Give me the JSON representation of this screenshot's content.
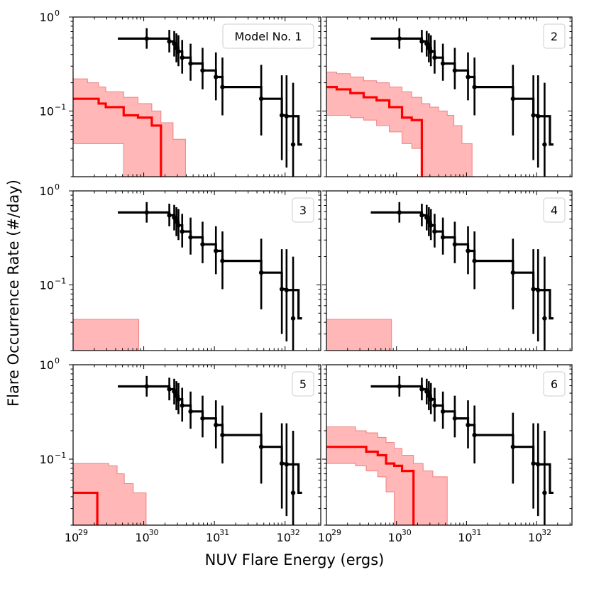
{
  "figure": {
    "xlabel": "NUV Flare Energy (ergs)",
    "ylabel": "Flare Occurrence Rate (#/day)",
    "colors": {
      "observed": "#000000",
      "model": "#ff0000",
      "band_fill": "#ffb3b3",
      "band_edge": "#f08080"
    }
  },
  "chart_data": [
    {
      "type": "line",
      "panel": 1,
      "legend_label": "Model No. 1",
      "xscale": "log",
      "yscale": "log",
      "xlim": [
        1e+29,
        3.2e+32
      ],
      "ylim": [
        0.02,
        1.0
      ],
      "observed": {
        "step_x": [
          4.3e+29,
          1.1e+30,
          2.3e+30,
          2.7e+30,
          2.9e+30,
          3.1e+30,
          3.5e+30,
          4.6e+30,
          6.8e+30,
          1.05e+31,
          1.3e+31,
          4.6e+31,
          9e+31,
          1.05e+32,
          1.55e+32
        ],
        "step_y": [
          0.59,
          0.59,
          0.55,
          0.52,
          0.47,
          0.43,
          0.37,
          0.32,
          0.27,
          0.23,
          0.18,
          0.135,
          0.09,
          0.088,
          0.044
        ],
        "points_x": [
          1.1e+30,
          2.3e+30,
          2.7e+30,
          2.9e+30,
          3.1e+30,
          3.5e+30,
          4.6e+30,
          6.8e+30,
          1.05e+31,
          1.3e+31,
          4.6e+31,
          9e+31,
          1.05e+32,
          1.3e+32
        ],
        "points_y": [
          0.59,
          0.55,
          0.52,
          0.47,
          0.43,
          0.37,
          0.32,
          0.27,
          0.23,
          0.18,
          0.135,
          0.09,
          0.088,
          0.044
        ],
        "err_lo": [
          0.46,
          0.42,
          0.38,
          0.33,
          0.3,
          0.25,
          0.21,
          0.17,
          0.13,
          0.09,
          0.055,
          0.03,
          0.025,
          0.02
        ],
        "err_hi": [
          0.76,
          0.73,
          0.71,
          0.67,
          0.64,
          0.57,
          0.52,
          0.47,
          0.42,
          0.37,
          0.31,
          0.24,
          0.24,
          0.2
        ]
      },
      "model_line": {
        "x": [
          1e+29,
          1.6e+29,
          2.3e+29,
          2.9e+29,
          5.2e+29,
          8.3e+29,
          1.3e+30,
          1.75e+30,
          1.75e+30
        ],
        "y": [
          0.135,
          0.135,
          0.12,
          0.11,
          0.09,
          0.085,
          0.07,
          0.045,
          0.02
        ]
      },
      "model_band": {
        "x": [
          1e+29,
          1.6e+29,
          2.3e+29,
          2.9e+29,
          5.2e+29,
          8.3e+29,
          1.3e+30,
          1.75e+30,
          2.6e+30,
          3.7e+30
        ],
        "upper": [
          0.22,
          0.2,
          0.18,
          0.16,
          0.14,
          0.12,
          0.1,
          0.075,
          0.05,
          0.05
        ],
        "lower": [
          0.045,
          0.045,
          0.045,
          0.045,
          0.02,
          0.02,
          0.02,
          0.02,
          0.02,
          0.02
        ],
        "x_end": 3.9e+30
      }
    },
    {
      "type": "line",
      "panel": 2,
      "legend_label": "2",
      "xscale": "log",
      "yscale": "log",
      "xlim": [
        1e+29,
        3.2e+32
      ],
      "ylim": [
        0.02,
        1.0
      ],
      "observed": {
        "step_x": [
          4.3e+29,
          1.1e+30,
          2.3e+30,
          2.7e+30,
          2.9e+30,
          3.1e+30,
          3.5e+30,
          4.6e+30,
          6.8e+30,
          1.05e+31,
          1.3e+31,
          4.6e+31,
          9e+31,
          1.05e+32,
          1.55e+32
        ],
        "step_y": [
          0.59,
          0.59,
          0.55,
          0.52,
          0.47,
          0.43,
          0.37,
          0.32,
          0.27,
          0.23,
          0.18,
          0.135,
          0.09,
          0.088,
          0.044
        ],
        "points_x": [
          1.1e+30,
          2.3e+30,
          2.7e+30,
          2.9e+30,
          3.1e+30,
          3.5e+30,
          4.6e+30,
          6.8e+30,
          1.05e+31,
          1.3e+31,
          4.6e+31,
          9e+31,
          1.05e+32,
          1.3e+32
        ],
        "points_y": [
          0.59,
          0.55,
          0.52,
          0.47,
          0.43,
          0.37,
          0.32,
          0.27,
          0.23,
          0.18,
          0.135,
          0.09,
          0.088,
          0.044
        ],
        "err_lo": [
          0.46,
          0.42,
          0.38,
          0.33,
          0.3,
          0.25,
          0.21,
          0.17,
          0.13,
          0.09,
          0.055,
          0.03,
          0.025,
          0.02
        ],
        "err_hi": [
          0.76,
          0.73,
          0.71,
          0.67,
          0.64,
          0.57,
          0.52,
          0.47,
          0.42,
          0.37,
          0.31,
          0.24,
          0.24,
          0.2
        ]
      },
      "model_line": {
        "x": [
          1e+29,
          1.4e+29,
          2.2e+29,
          3.4e+29,
          5.2e+29,
          7.9e+29,
          1.2e+30,
          1.65e+30,
          2.3e+30,
          2.3e+30
        ],
        "y": [
          0.18,
          0.17,
          0.155,
          0.14,
          0.13,
          0.11,
          0.085,
          0.08,
          0.07,
          0.02
        ]
      },
      "model_band": {
        "x": [
          1e+29,
          1.4e+29,
          2.2e+29,
          3.4e+29,
          5.2e+29,
          7.9e+29,
          1.2e+30,
          1.65e+30,
          2.3e+30,
          3e+30,
          4e+30,
          5.3e+30,
          6.6e+30,
          8.6e+30
        ],
        "upper": [
          0.26,
          0.25,
          0.23,
          0.21,
          0.2,
          0.18,
          0.16,
          0.14,
          0.12,
          0.11,
          0.1,
          0.09,
          0.07,
          0.045
        ],
        "lower": [
          0.09,
          0.09,
          0.085,
          0.08,
          0.07,
          0.06,
          0.045,
          0.04,
          0.02,
          0.02,
          0.02,
          0.02,
          0.02,
          0.02
        ],
        "x_end": 1.2e+31
      }
    },
    {
      "type": "line",
      "panel": 3,
      "legend_label": "3",
      "xscale": "log",
      "yscale": "log",
      "xlim": [
        1e+29,
        3.2e+32
      ],
      "ylim": [
        0.02,
        1.0
      ],
      "observed": {
        "step_x": [
          4.3e+29,
          1.1e+30,
          2.3e+30,
          2.7e+30,
          2.9e+30,
          3.1e+30,
          3.5e+30,
          4.6e+30,
          6.8e+30,
          1.05e+31,
          1.3e+31,
          4.6e+31,
          9e+31,
          1.05e+32,
          1.55e+32
        ],
        "step_y": [
          0.59,
          0.59,
          0.55,
          0.52,
          0.47,
          0.43,
          0.37,
          0.32,
          0.27,
          0.23,
          0.18,
          0.135,
          0.09,
          0.088,
          0.044
        ],
        "points_x": [
          1.1e+30,
          2.3e+30,
          2.7e+30,
          2.9e+30,
          3.1e+30,
          3.5e+30,
          4.6e+30,
          6.8e+30,
          1.05e+31,
          1.3e+31,
          4.6e+31,
          9e+31,
          1.05e+32,
          1.3e+32
        ],
        "points_y": [
          0.59,
          0.55,
          0.52,
          0.47,
          0.43,
          0.37,
          0.32,
          0.27,
          0.23,
          0.18,
          0.135,
          0.09,
          0.088,
          0.044
        ],
        "err_lo": [
          0.46,
          0.42,
          0.38,
          0.33,
          0.3,
          0.25,
          0.21,
          0.17,
          0.13,
          0.09,
          0.055,
          0.03,
          0.025,
          0.02
        ],
        "err_hi": [
          0.76,
          0.73,
          0.71,
          0.67,
          0.64,
          0.57,
          0.52,
          0.47,
          0.42,
          0.37,
          0.31,
          0.24,
          0.24,
          0.2
        ]
      },
      "model_line": {
        "x": [],
        "y": []
      },
      "model_band": {
        "x": [
          1e+29
        ],
        "upper": [
          0.043
        ],
        "lower": [
          0.02
        ],
        "x_end": 8.5e+29
      }
    },
    {
      "type": "line",
      "panel": 4,
      "legend_label": "4",
      "xscale": "log",
      "yscale": "log",
      "xlim": [
        1e+29,
        3.2e+32
      ],
      "ylim": [
        0.02,
        1.0
      ],
      "observed": {
        "step_x": [
          4.3e+29,
          1.1e+30,
          2.3e+30,
          2.7e+30,
          2.9e+30,
          3.1e+30,
          3.5e+30,
          4.6e+30,
          6.8e+30,
          1.05e+31,
          1.3e+31,
          4.6e+31,
          9e+31,
          1.05e+32,
          1.55e+32
        ],
        "step_y": [
          0.59,
          0.59,
          0.55,
          0.52,
          0.47,
          0.43,
          0.37,
          0.32,
          0.27,
          0.23,
          0.18,
          0.135,
          0.09,
          0.088,
          0.044
        ],
        "points_x": [
          1.1e+30,
          2.3e+30,
          2.7e+30,
          2.9e+30,
          3.1e+30,
          3.5e+30,
          4.6e+30,
          6.8e+30,
          1.05e+31,
          1.3e+31,
          4.6e+31,
          9e+31,
          1.05e+32,
          1.3e+32
        ],
        "points_y": [
          0.59,
          0.55,
          0.52,
          0.47,
          0.43,
          0.37,
          0.32,
          0.27,
          0.23,
          0.18,
          0.135,
          0.09,
          0.088,
          0.044
        ],
        "err_lo": [
          0.46,
          0.42,
          0.38,
          0.33,
          0.3,
          0.25,
          0.21,
          0.17,
          0.13,
          0.09,
          0.055,
          0.03,
          0.025,
          0.02
        ],
        "err_hi": [
          0.76,
          0.73,
          0.71,
          0.67,
          0.64,
          0.57,
          0.52,
          0.47,
          0.42,
          0.37,
          0.31,
          0.24,
          0.24,
          0.2
        ]
      },
      "model_line": {
        "x": [],
        "y": []
      },
      "model_band": {
        "x": [
          1e+29
        ],
        "upper": [
          0.043
        ],
        "lower": [
          0.02
        ],
        "x_end": 8.5e+29
      }
    },
    {
      "type": "line",
      "panel": 5,
      "legend_label": "5",
      "xscale": "log",
      "yscale": "log",
      "xlim": [
        1e+29,
        3.2e+32
      ],
      "ylim": [
        0.02,
        1.0
      ],
      "observed": {
        "step_x": [
          4.3e+29,
          1.1e+30,
          2.3e+30,
          2.7e+30,
          2.9e+30,
          3.1e+30,
          3.5e+30,
          4.6e+30,
          6.8e+30,
          1.05e+31,
          1.3e+31,
          4.6e+31,
          9e+31,
          1.05e+32,
          1.55e+32
        ],
        "step_y": [
          0.59,
          0.59,
          0.55,
          0.52,
          0.47,
          0.43,
          0.37,
          0.32,
          0.27,
          0.23,
          0.18,
          0.135,
          0.09,
          0.088,
          0.044
        ],
        "points_x": [
          1.1e+30,
          2.3e+30,
          2.7e+30,
          2.9e+30,
          3.1e+30,
          3.5e+30,
          4.6e+30,
          6.8e+30,
          1.05e+31,
          1.3e+31,
          4.6e+31,
          9e+31,
          1.05e+32,
          1.3e+32
        ],
        "points_y": [
          0.59,
          0.55,
          0.52,
          0.47,
          0.43,
          0.37,
          0.32,
          0.27,
          0.23,
          0.18,
          0.135,
          0.09,
          0.088,
          0.044
        ],
        "err_lo": [
          0.46,
          0.42,
          0.38,
          0.33,
          0.3,
          0.25,
          0.21,
          0.17,
          0.13,
          0.09,
          0.055,
          0.03,
          0.025,
          0.02
        ],
        "err_hi": [
          0.76,
          0.73,
          0.71,
          0.67,
          0.64,
          0.57,
          0.52,
          0.47,
          0.42,
          0.37,
          0.31,
          0.24,
          0.24,
          0.2
        ]
      },
      "model_line": {
        "x": [
          1e+29,
          2.2e+29,
          2.2e+29
        ],
        "y": [
          0.044,
          0.044,
          0.02
        ]
      },
      "model_band": {
        "x": [
          1e+29,
          3.2e+29,
          4.2e+29,
          5.3e+29,
          7.1e+29
        ],
        "upper": [
          0.09,
          0.085,
          0.07,
          0.055,
          0.044
        ],
        "lower": [
          0.02,
          0.02,
          0.02,
          0.02,
          0.02
        ],
        "x_end": 1.08e+30
      }
    },
    {
      "type": "line",
      "panel": 6,
      "legend_label": "6",
      "xscale": "log",
      "yscale": "log",
      "xlim": [
        1e+29,
        3.2e+32
      ],
      "ylim": [
        0.02,
        1.0
      ],
      "observed": {
        "step_x": [
          4.3e+29,
          1.1e+30,
          2.3e+30,
          2.7e+30,
          2.9e+30,
          3.1e+30,
          3.5e+30,
          4.6e+30,
          6.8e+30,
          1.05e+31,
          1.3e+31,
          4.6e+31,
          9e+31,
          1.05e+32,
          1.55e+32
        ],
        "step_y": [
          0.59,
          0.59,
          0.55,
          0.52,
          0.47,
          0.43,
          0.37,
          0.32,
          0.27,
          0.23,
          0.18,
          0.135,
          0.09,
          0.088,
          0.044
        ],
        "points_x": [
          1.1e+30,
          2.3e+30,
          2.7e+30,
          2.9e+30,
          3.1e+30,
          3.5e+30,
          4.6e+30,
          6.8e+30,
          1.05e+31,
          1.3e+31,
          4.6e+31,
          9e+31,
          1.05e+32,
          1.3e+32
        ],
        "points_y": [
          0.59,
          0.55,
          0.52,
          0.47,
          0.43,
          0.37,
          0.32,
          0.27,
          0.23,
          0.18,
          0.135,
          0.09,
          0.088,
          0.044
        ],
        "err_lo": [
          0.46,
          0.42,
          0.38,
          0.33,
          0.3,
          0.25,
          0.21,
          0.17,
          0.13,
          0.09,
          0.055,
          0.03,
          0.025,
          0.02
        ],
        "err_hi": [
          0.76,
          0.73,
          0.71,
          0.67,
          0.64,
          0.57,
          0.52,
          0.47,
          0.42,
          0.37,
          0.31,
          0.24,
          0.24,
          0.2
        ]
      },
      "model_line": {
        "x": [
          1e+29,
          2.6e+29,
          3.7e+29,
          5.4e+29,
          7.1e+29,
          9.3e+29,
          1.2e+30,
          1.75e+30,
          1.75e+30
        ],
        "y": [
          0.135,
          0.135,
          0.12,
          0.11,
          0.09,
          0.085,
          0.075,
          0.065,
          0.02
        ]
      },
      "model_band": {
        "x": [
          1e+29,
          2.6e+29,
          3.7e+29,
          5.4e+29,
          7.1e+29,
          9.3e+29,
          1.2e+30,
          1.75e+30,
          2.4e+30,
          3.3e+30
        ],
        "upper": [
          0.22,
          0.2,
          0.19,
          0.17,
          0.15,
          0.13,
          0.11,
          0.09,
          0.075,
          0.065
        ],
        "lower": [
          0.09,
          0.085,
          0.075,
          0.065,
          0.045,
          0.02,
          0.02,
          0.02,
          0.02,
          0.02
        ],
        "x_end": 5.3e+30
      }
    }
  ]
}
